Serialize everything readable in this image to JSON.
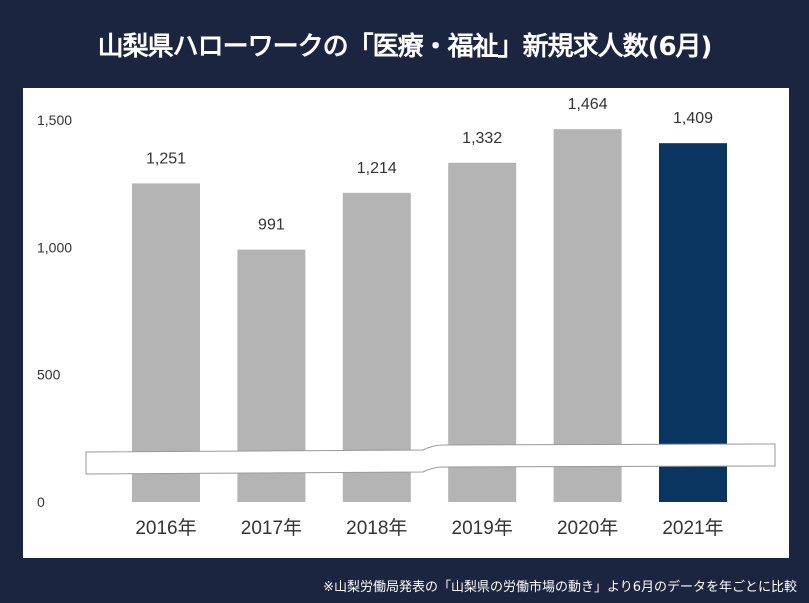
{
  "title": "山梨県ハローワークの「医療・福祉」新規求人数(6月)",
  "footnote": "※山梨労働局発表の「山梨県の労働市場の動き」より6月のデータを年ごとに比較",
  "colors": {
    "background": "#1c2540",
    "bar": "#b4b4b4",
    "highlight": "#0a3560"
  },
  "chart_data": {
    "type": "bar",
    "title": "山梨県ハローワークの「医療・福祉」新規求人数(6月)",
    "categories": [
      "2016年",
      "2017年",
      "2018年",
      "2019年",
      "2020年",
      "2021年"
    ],
    "values": [
      1251,
      991,
      1214,
      1332,
      1464,
      1409
    ],
    "data_labels": [
      "1,251",
      "991",
      "1,214",
      "1,332",
      "1,464",
      "1,409"
    ],
    "highlight_index": 5,
    "yticks": [
      0,
      500,
      1000,
      1500
    ],
    "ytick_labels": [
      "0",
      "500",
      "1,000",
      "1,500"
    ],
    "ylim": [
      0,
      1500
    ],
    "axis_break": true,
    "grid": false,
    "xlabel": "",
    "ylabel": ""
  }
}
